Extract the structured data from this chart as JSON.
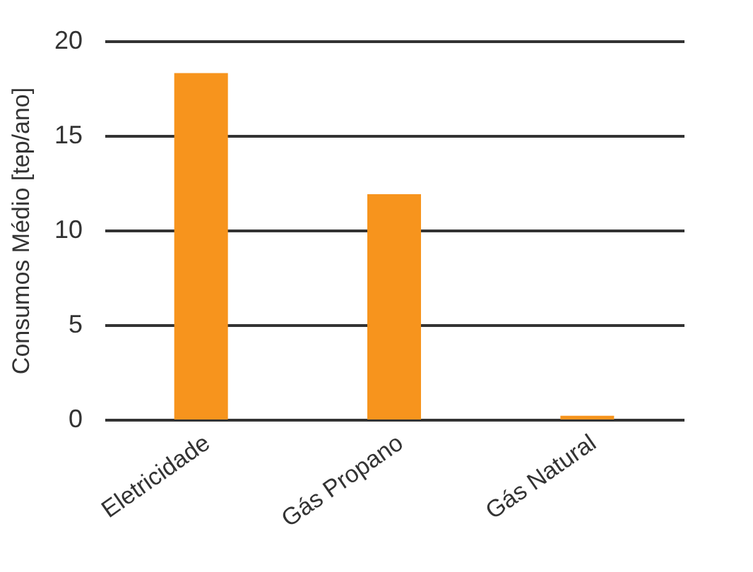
{
  "chart_data": {
    "type": "bar",
    "ylabel": "Consumos Médio [tep/ano]",
    "categories": [
      "Eletricidade",
      "Gás Propano",
      "Gás Natural"
    ],
    "values": [
      18.3,
      11.9,
      0.2
    ],
    "color": "#f7941d",
    "ylim": [
      0,
      20
    ],
    "yticks": [
      0,
      5,
      10,
      15,
      20
    ],
    "grid": "y"
  }
}
